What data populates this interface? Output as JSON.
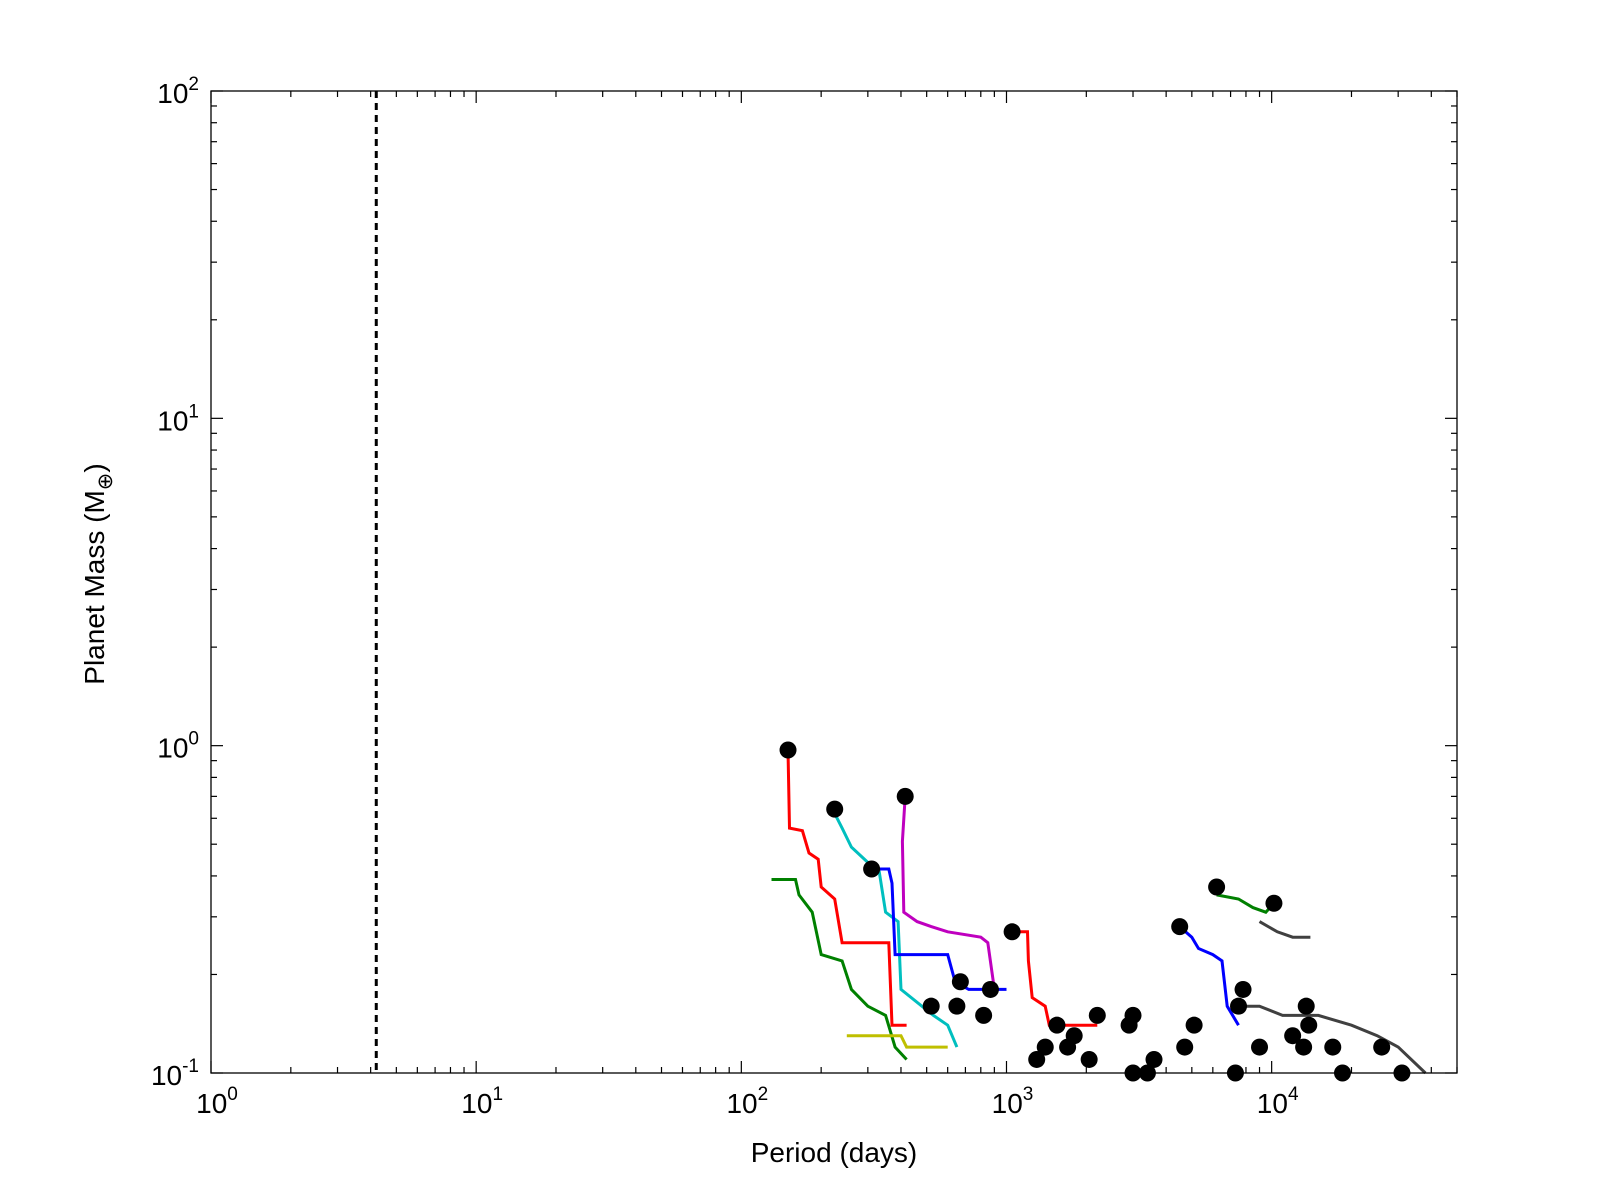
{
  "chart_data": {
    "type": "line",
    "title": "",
    "xlabel": "Period (days)",
    "ylabel_text": "Planet Mass (M",
    "ylabel_subscript": "⊕",
    "ylabel_close": ")",
    "xscale": "log",
    "yscale": "log",
    "xlim": [
      1,
      50000
    ],
    "ylim": [
      0.1,
      100
    ],
    "grid": false,
    "legend": "none",
    "x_ticks": [
      {
        "value": 1,
        "base": "10",
        "exp": "0"
      },
      {
        "value": 10,
        "base": "10",
        "exp": "1"
      },
      {
        "value": 100,
        "base": "10",
        "exp": "2"
      },
      {
        "value": 1000,
        "base": "10",
        "exp": "3"
      },
      {
        "value": 10000,
        "base": "10",
        "exp": "4"
      }
    ],
    "y_ticks": [
      {
        "value": 0.1,
        "base": "10",
        "exp": "-1"
      },
      {
        "value": 1,
        "base": "10",
        "exp": "0"
      },
      {
        "value": 10,
        "base": "10",
        "exp": "1"
      },
      {
        "value": 100,
        "base": "10",
        "exp": "2"
      }
    ],
    "reference_line": {
      "x": 4.2,
      "style": "dashed",
      "color": "#000000"
    },
    "series": [
      {
        "color": "#ff0000",
        "points": [
          [
            150,
            0.97
          ],
          [
            152,
            0.56
          ],
          [
            170,
            0.55
          ],
          [
            180,
            0.47
          ],
          [
            195,
            0.45
          ],
          [
            200,
            0.37
          ],
          [
            225,
            0.34
          ],
          [
            240,
            0.25
          ],
          [
            360,
            0.25
          ],
          [
            370,
            0.14
          ],
          [
            420,
            0.14
          ]
        ]
      },
      {
        "color": "#008000",
        "points": [
          [
            130,
            0.39
          ],
          [
            160,
            0.39
          ],
          [
            165,
            0.35
          ],
          [
            185,
            0.31
          ],
          [
            200,
            0.23
          ],
          [
            240,
            0.22
          ],
          [
            260,
            0.18
          ],
          [
            300,
            0.16
          ],
          [
            350,
            0.15
          ],
          [
            380,
            0.12
          ],
          [
            420,
            0.11
          ]
        ]
      },
      {
        "color": "#00bfbf",
        "points": [
          [
            225,
            0.62
          ],
          [
            240,
            0.56
          ],
          [
            260,
            0.49
          ],
          [
            300,
            0.44
          ],
          [
            330,
            0.42
          ],
          [
            350,
            0.31
          ],
          [
            390,
            0.29
          ],
          [
            400,
            0.18
          ],
          [
            530,
            0.15
          ],
          [
            600,
            0.14
          ],
          [
            650,
            0.12
          ]
        ]
      },
      {
        "color": "#bf00bf",
        "points": [
          [
            415,
            0.7
          ],
          [
            405,
            0.51
          ],
          [
            410,
            0.31
          ],
          [
            460,
            0.29
          ],
          [
            520,
            0.28
          ],
          [
            600,
            0.27
          ],
          [
            800,
            0.26
          ],
          [
            850,
            0.25
          ],
          [
            900,
            0.18
          ]
        ]
      },
      {
        "color": "#0000ff",
        "points": [
          [
            310,
            0.42
          ],
          [
            360,
            0.42
          ],
          [
            370,
            0.38
          ],
          [
            380,
            0.23
          ],
          [
            600,
            0.23
          ],
          [
            640,
            0.19
          ],
          [
            720,
            0.18
          ],
          [
            1000,
            0.18
          ]
        ]
      },
      {
        "color": "#ff0000",
        "points": [
          [
            1050,
            0.27
          ],
          [
            1200,
            0.27
          ],
          [
            1210,
            0.22
          ],
          [
            1250,
            0.17
          ],
          [
            1400,
            0.16
          ],
          [
            1450,
            0.14
          ],
          [
            2200,
            0.14
          ]
        ]
      },
      {
        "color": "#0000ff",
        "points": [
          [
            4500,
            0.28
          ],
          [
            5000,
            0.26
          ],
          [
            5300,
            0.24
          ],
          [
            6000,
            0.23
          ],
          [
            6500,
            0.22
          ],
          [
            6800,
            0.16
          ],
          [
            7500,
            0.14
          ]
        ]
      },
      {
        "color": "#008000",
        "points": [
          [
            6200,
            0.35
          ],
          [
            7500,
            0.34
          ],
          [
            8500,
            0.32
          ],
          [
            9500,
            0.31
          ],
          [
            10200,
            0.33
          ]
        ]
      },
      {
        "color": "#404040",
        "points": [
          [
            9000,
            0.29
          ],
          [
            10500,
            0.27
          ],
          [
            12000,
            0.26
          ],
          [
            14000,
            0.26
          ]
        ]
      },
      {
        "color": "#bfbf00",
        "points": [
          [
            250,
            0.13
          ],
          [
            400,
            0.13
          ],
          [
            420,
            0.12
          ],
          [
            600,
            0.12
          ]
        ]
      },
      {
        "color": "#404040",
        "points": [
          [
            7000,
            0.16
          ],
          [
            9000,
            0.16
          ],
          [
            11000,
            0.15
          ],
          [
            15000,
            0.15
          ],
          [
            20000,
            0.14
          ],
          [
            25000,
            0.13
          ],
          [
            30000,
            0.12
          ],
          [
            38000,
            0.1
          ]
        ]
      }
    ],
    "markers": [
      {
        "x": 150,
        "y": 0.97
      },
      {
        "x": 225,
        "y": 0.64
      },
      {
        "x": 415,
        "y": 0.7
      },
      {
        "x": 310,
        "y": 0.42
      },
      {
        "x": 1050,
        "y": 0.27
      },
      {
        "x": 4500,
        "y": 0.28
      },
      {
        "x": 6200,
        "y": 0.37
      },
      {
        "x": 10200,
        "y": 0.33
      },
      {
        "x": 520,
        "y": 0.16
      },
      {
        "x": 650,
        "y": 0.16
      },
      {
        "x": 670,
        "y": 0.19
      },
      {
        "x": 870,
        "y": 0.18
      },
      {
        "x": 820,
        "y": 0.15
      },
      {
        "x": 1550,
        "y": 0.14
      },
      {
        "x": 2200,
        "y": 0.15
      },
      {
        "x": 3000,
        "y": 0.15
      },
      {
        "x": 2900,
        "y": 0.14
      },
      {
        "x": 5100,
        "y": 0.14
      },
      {
        "x": 7800,
        "y": 0.18
      },
      {
        "x": 7500,
        "y": 0.16
      },
      {
        "x": 13500,
        "y": 0.16
      },
      {
        "x": 13800,
        "y": 0.14
      },
      {
        "x": 1400,
        "y": 0.12
      },
      {
        "x": 1700,
        "y": 0.12
      },
      {
        "x": 1800,
        "y": 0.13
      },
      {
        "x": 1300,
        "y": 0.11
      },
      {
        "x": 2050,
        "y": 0.11
      },
      {
        "x": 3600,
        "y": 0.11
      },
      {
        "x": 4700,
        "y": 0.12
      },
      {
        "x": 9000,
        "y": 0.12
      },
      {
        "x": 12000,
        "y": 0.13
      },
      {
        "x": 13200,
        "y": 0.12
      },
      {
        "x": 17000,
        "y": 0.12
      },
      {
        "x": 26000,
        "y": 0.12
      },
      {
        "x": 3000,
        "y": 0.1
      },
      {
        "x": 3400,
        "y": 0.1
      },
      {
        "x": 7300,
        "y": 0.1
      },
      {
        "x": 18500,
        "y": 0.1
      },
      {
        "x": 31000,
        "y": 0.1
      }
    ]
  }
}
